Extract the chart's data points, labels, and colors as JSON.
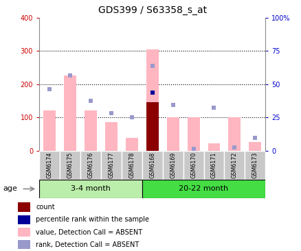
{
  "title": "GDS399 / S63358_s_at",
  "samples": [
    "GSM6174",
    "GSM6175",
    "GSM6176",
    "GSM6177",
    "GSM6178",
    "GSM6168",
    "GSM6169",
    "GSM6170",
    "GSM6171",
    "GSM6172",
    "GSM6173"
  ],
  "group1_label": "3-4 month",
  "group2_label": "20-22 month",
  "group1_count": 5,
  "group2_count": 6,
  "ylim_left": [
    0,
    400
  ],
  "ylim_right": [
    0,
    100
  ],
  "yticks_left": [
    0,
    100,
    200,
    300,
    400
  ],
  "yticks_right": [
    0,
    25,
    50,
    75,
    100
  ],
  "yticklabels_right": [
    "0",
    "25",
    "50",
    "75",
    "100%"
  ],
  "values_absent": [
    120,
    225,
    120,
    85,
    38,
    305,
    100,
    100,
    22,
    100,
    25
  ],
  "ranks_absent": [
    185,
    225,
    150,
    113,
    100,
    255,
    138,
    5,
    130,
    10,
    38
  ],
  "count_bar_index": 5,
  "count_bar_value": 145,
  "percentile_bar_index": 5,
  "percentile_bar_value": 175,
  "bar_color_absent": "#FFB6C1",
  "bar_color_count": "#8B0000",
  "dot_color_rank": "#9999CC",
  "dot_color_percentile": "#000099",
  "left_tick_color": "#CC0000",
  "right_tick_color": "#0000CC",
  "group1_bg": "#BBEEAA",
  "group2_bg": "#44DD44",
  "xtick_bg": "#C8C8C8",
  "legend_items": [
    {
      "label": "count",
      "color": "#8B0000"
    },
    {
      "label": "percentile rank within the sample",
      "color": "#000099"
    },
    {
      "label": "value, Detection Call = ABSENT",
      "color": "#FFB6C1"
    },
    {
      "label": "rank, Detection Call = ABSENT",
      "color": "#9999CC"
    }
  ]
}
